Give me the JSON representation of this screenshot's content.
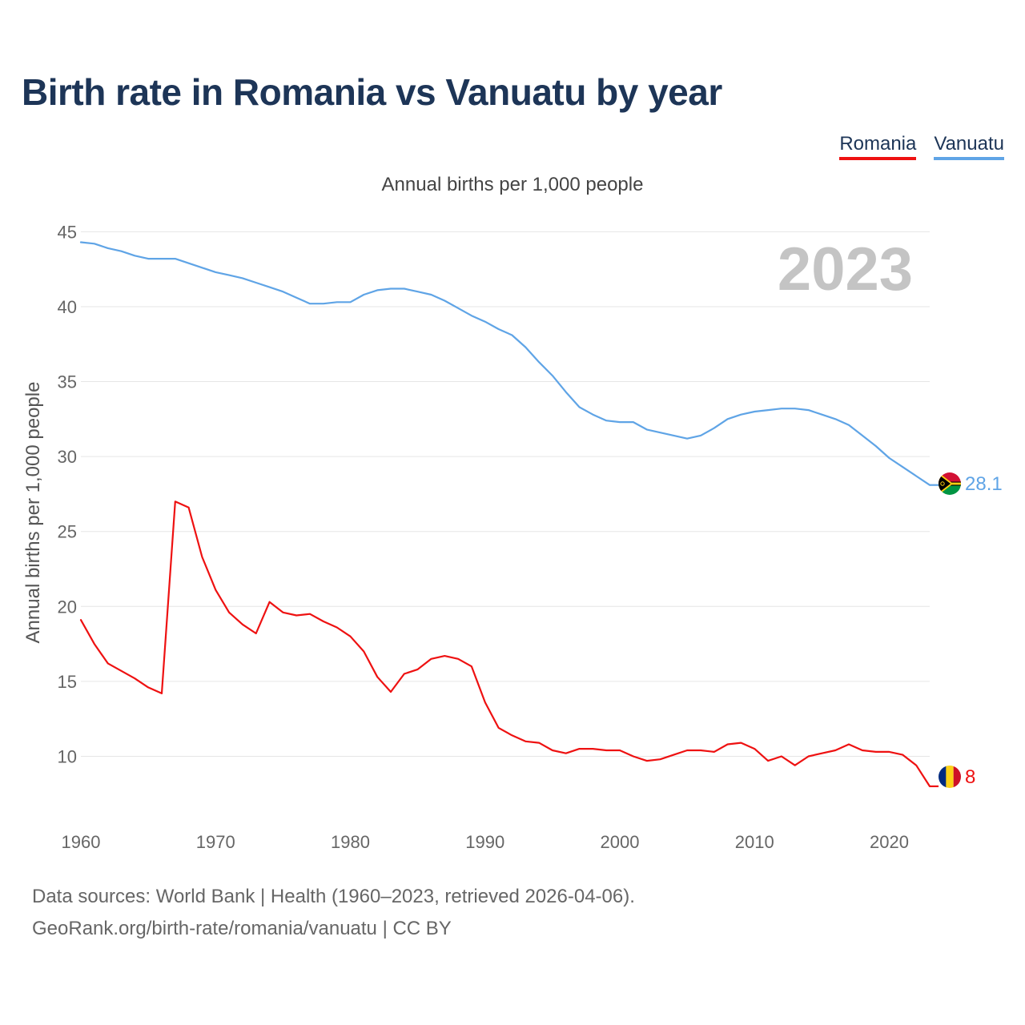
{
  "title": "Birth rate in Romania vs Vanuatu by year",
  "subtitle": "Annual births per 1,000 people",
  "legend": [
    {
      "name": "Romania",
      "color": "#ee1111"
    },
    {
      "name": "Vanuatu",
      "color": "#5fa4e6"
    }
  ],
  "footer": {
    "line1": "Data sources: World Bank | Health (1960–2023, retrieved 2026-04-06).",
    "line2": "GeoRank.org/birth-rate/romania/vanuatu | CC BY"
  },
  "chart_data": {
    "type": "line",
    "title": "Birth rate in Romania vs Vanuatu by year",
    "subtitle": "Annual births per 1,000 people",
    "xlabel": "",
    "ylabel": "Annual births per 1,000 people",
    "year_label": "2023",
    "xlim": [
      1960,
      2023
    ],
    "ylim": [
      6.5,
      45.5
    ],
    "x_ticks": [
      1960,
      1970,
      1980,
      1990,
      2000,
      2010,
      2020
    ],
    "y_ticks": [
      10,
      15,
      20,
      25,
      30,
      35,
      40,
      45
    ],
    "grid": true,
    "legend_position": "top-right",
    "x": [
      1960,
      1961,
      1962,
      1963,
      1964,
      1965,
      1966,
      1967,
      1968,
      1969,
      1970,
      1971,
      1972,
      1973,
      1974,
      1975,
      1976,
      1977,
      1978,
      1979,
      1980,
      1981,
      1982,
      1983,
      1984,
      1985,
      1986,
      1987,
      1988,
      1989,
      1990,
      1991,
      1992,
      1993,
      1994,
      1995,
      1996,
      1997,
      1998,
      1999,
      2000,
      2001,
      2002,
      2003,
      2004,
      2005,
      2006,
      2007,
      2008,
      2009,
      2010,
      2011,
      2012,
      2013,
      2014,
      2015,
      2016,
      2017,
      2018,
      2019,
      2020,
      2021,
      2022,
      2023
    ],
    "series": [
      {
        "name": "Romania",
        "color": "#ee1111",
        "end_label": "8",
        "values": [
          19.1,
          17.5,
          16.2,
          15.7,
          15.2,
          14.6,
          14.2,
          27.0,
          26.6,
          23.3,
          21.1,
          19.6,
          18.8,
          18.2,
          20.3,
          19.6,
          19.4,
          19.5,
          19.0,
          18.6,
          18.0,
          17.0,
          15.3,
          14.3,
          15.5,
          15.8,
          16.5,
          16.7,
          16.5,
          16.0,
          13.6,
          11.9,
          11.4,
          11.0,
          10.9,
          10.4,
          10.2,
          10.5,
          10.5,
          10.4,
          10.4,
          10.0,
          9.7,
          9.8,
          10.1,
          10.4,
          10.4,
          10.3,
          10.8,
          10.9,
          10.5,
          9.7,
          10.0,
          9.4,
          10.0,
          10.2,
          10.4,
          10.8,
          10.4,
          10.3,
          10.3,
          10.1,
          9.4,
          8.0
        ]
      },
      {
        "name": "Vanuatu",
        "color": "#5fa4e6",
        "end_label": "28.1",
        "values": [
          44.3,
          44.2,
          43.9,
          43.7,
          43.4,
          43.2,
          43.2,
          43.2,
          42.9,
          42.6,
          42.3,
          42.1,
          41.9,
          41.6,
          41.3,
          41.0,
          40.6,
          40.2,
          40.2,
          40.3,
          40.3,
          40.8,
          41.1,
          41.2,
          41.2,
          41.0,
          40.8,
          40.4,
          39.9,
          39.4,
          39.0,
          38.5,
          38.1,
          37.3,
          36.3,
          35.4,
          34.3,
          33.3,
          32.8,
          32.4,
          32.3,
          32.3,
          31.8,
          31.6,
          31.4,
          31.2,
          31.4,
          31.9,
          32.5,
          32.8,
          33.0,
          33.1,
          33.2,
          33.2,
          33.1,
          32.8,
          32.5,
          32.1,
          31.4,
          30.7,
          29.9,
          29.3,
          28.7,
          28.1
        ]
      }
    ]
  }
}
